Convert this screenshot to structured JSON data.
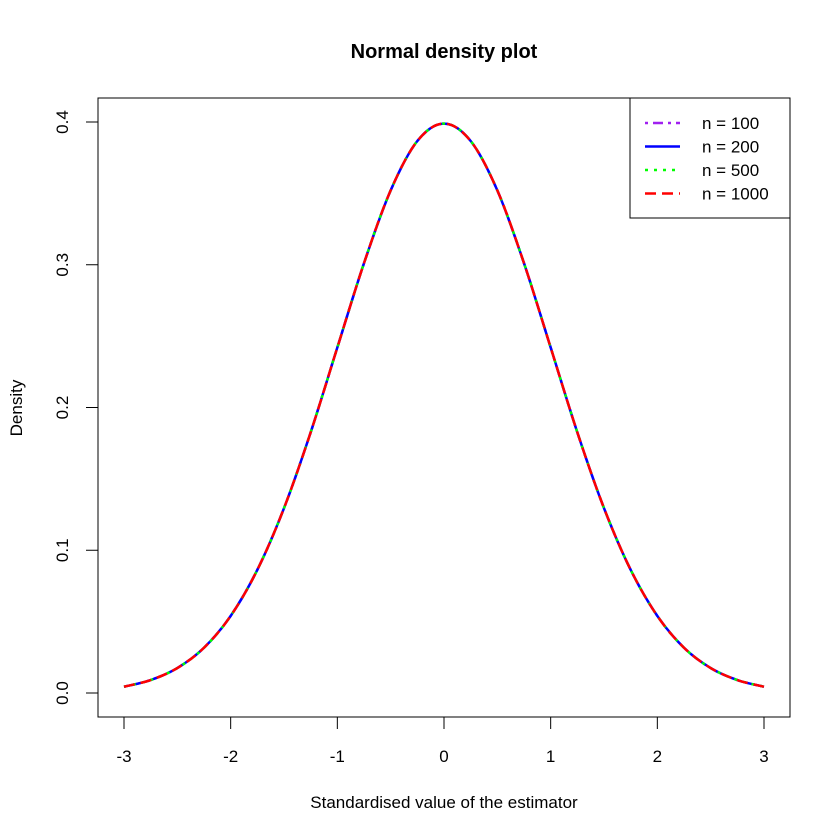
{
  "chart_data": {
    "type": "line",
    "title": "Normal density plot",
    "xlabel": "Standardised value of the estimator",
    "ylabel": "Density",
    "xlim": [
      -3,
      3
    ],
    "ylim": [
      0,
      0.4
    ],
    "x_ticks": [
      -3,
      -2,
      -1,
      0,
      1,
      2,
      3
    ],
    "y_ticks": [
      0.0,
      0.1,
      0.2,
      0.3,
      0.4
    ],
    "x_tick_labels": [
      "-3",
      "-2",
      "-1",
      "0",
      "1",
      "2",
      "3"
    ],
    "y_tick_labels": [
      "0.0",
      "0.1",
      "0.2",
      "0.3",
      "0.4"
    ],
    "legend_position": "top-right",
    "grid": false,
    "x": [
      -3.0,
      -2.75,
      -2.5,
      -2.25,
      -2.0,
      -1.75,
      -1.5,
      -1.25,
      -1.0,
      -0.75,
      -0.5,
      -0.25,
      0.0,
      0.25,
      0.5,
      0.75,
      1.0,
      1.25,
      1.5,
      1.75,
      2.0,
      2.25,
      2.5,
      2.75,
      3.0
    ],
    "series": [
      {
        "name": "n = 100",
        "color": "#a020f0",
        "line_style": "dashdot",
        "values": [
          0.0044,
          0.0091,
          0.0175,
          0.0317,
          0.054,
          0.0863,
          0.1295,
          0.1826,
          0.242,
          0.3011,
          0.3521,
          0.3867,
          0.3989,
          0.3867,
          0.3521,
          0.3011,
          0.242,
          0.1826,
          0.1295,
          0.0863,
          0.054,
          0.0317,
          0.0175,
          0.0091,
          0.0044
        ]
      },
      {
        "name": "n = 200",
        "color": "#0000ff",
        "line_style": "solid",
        "values": [
          0.0044,
          0.0091,
          0.0175,
          0.0317,
          0.054,
          0.0863,
          0.1295,
          0.1826,
          0.242,
          0.3011,
          0.3521,
          0.3867,
          0.3989,
          0.3867,
          0.3521,
          0.3011,
          0.242,
          0.1826,
          0.1295,
          0.0863,
          0.054,
          0.0317,
          0.0175,
          0.0091,
          0.0044
        ]
      },
      {
        "name": "n = 500",
        "color": "#00ff00",
        "line_style": "dotted",
        "values": [
          0.0044,
          0.0091,
          0.0175,
          0.0317,
          0.054,
          0.0863,
          0.1295,
          0.1826,
          0.242,
          0.3011,
          0.3521,
          0.3867,
          0.3989,
          0.3867,
          0.3521,
          0.3011,
          0.242,
          0.1826,
          0.1295,
          0.0863,
          0.054,
          0.0317,
          0.0175,
          0.0091,
          0.0044
        ]
      },
      {
        "name": "n = 1000",
        "color": "#ff0000",
        "line_style": "dashed",
        "values": [
          0.0044,
          0.0091,
          0.0175,
          0.0317,
          0.054,
          0.0863,
          0.1295,
          0.1826,
          0.242,
          0.3011,
          0.3521,
          0.3867,
          0.3989,
          0.3867,
          0.3521,
          0.3011,
          0.242,
          0.1826,
          0.1295,
          0.0863,
          0.054,
          0.0317,
          0.0175,
          0.0091,
          0.0044
        ]
      }
    ]
  }
}
